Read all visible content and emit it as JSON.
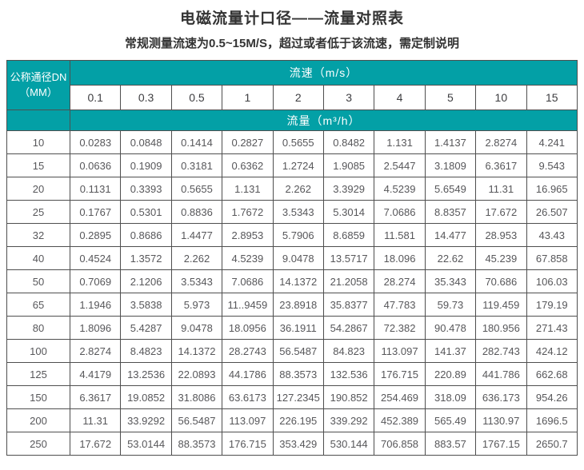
{
  "page": {
    "title": "电磁流量计口径——流量对照表",
    "subtitle": "常规测量流速为0.5~15M/S，超过或者低于该流速，需定制说明"
  },
  "colors": {
    "accent_teal": "#03a0a6",
    "table_border": "#4f4f4f",
    "header_text": "#ffffff",
    "data_text": "#57575a",
    "title_text": "#333333"
  },
  "chart_data": {
    "type": "table",
    "title": "电磁流量计口径——流量对照表",
    "subtitle": "常规测量流速为0.5~15M/S，超过或者低于该流速，需定制说明",
    "corner_header_line1": "公称通径DN",
    "corner_header_line2": "（MM）",
    "speed_header": "流速（m/s）",
    "flow_header": "流量（m³/h）",
    "speeds_mps": [
      "0.1",
      "0.3",
      "0.5",
      "1",
      "2",
      "3",
      "4",
      "5",
      "10",
      "15"
    ],
    "rows": [
      {
        "dn": "10",
        "flows_m3h": [
          "0.0283",
          "0.0848",
          "0.1414",
          "0.2827",
          "0.5655",
          "0.8482",
          "1.131",
          "1.4137",
          "2.8274",
          "4.241"
        ]
      },
      {
        "dn": "15",
        "flows_m3h": [
          "0.0636",
          "0.1909",
          "0.3181",
          "0.6362",
          "1.2724",
          "1.9085",
          "2.5447",
          "3.1809",
          "6.3617",
          "9.543"
        ]
      },
      {
        "dn": "20",
        "flows_m3h": [
          "0.1131",
          "0.3393",
          "0.5655",
          "1.131",
          "2.262",
          "3.3929",
          "4.5239",
          "5.6549",
          "11.31",
          "16.965"
        ]
      },
      {
        "dn": "25",
        "flows_m3h": [
          "0.1767",
          "0.5301",
          "0.8836",
          "1.7672",
          "3.5343",
          "5.3014",
          "7.0686",
          "8.8357",
          "17.672",
          "26.507"
        ]
      },
      {
        "dn": "32",
        "flows_m3h": [
          "0.2895",
          "0.8686",
          "1.4477",
          "2.8953",
          "5.7906",
          "8.6859",
          "11.581",
          "14.477",
          "28.953",
          "43.43"
        ]
      },
      {
        "dn": "40",
        "flows_m3h": [
          "0.4524",
          "1.3572",
          "2.262",
          "4.5239",
          "9.0478",
          "13.5717",
          "18.096",
          "22.62",
          "45.239",
          "67.858"
        ]
      },
      {
        "dn": "50",
        "flows_m3h": [
          "0.7069",
          "2.1206",
          "3.5343",
          "7.0686",
          "14.1372",
          "21.2058",
          "28.274",
          "35.343",
          "70.686",
          "106.03"
        ]
      },
      {
        "dn": "65",
        "flows_m3h": [
          "1.1946",
          "3.5838",
          "5.973",
          "11..9459",
          "23.8918",
          "35.8377",
          "47.783",
          "59.73",
          "119.459",
          "179.19"
        ]
      },
      {
        "dn": "80",
        "flows_m3h": [
          "1.8096",
          "5.4287",
          "9.0478",
          "18.0956",
          "36.1911",
          "54.2867",
          "72.382",
          "90.478",
          "180.956",
          "271.43"
        ]
      },
      {
        "dn": "100",
        "flows_m3h": [
          "2.8274",
          "8.4823",
          "14.1372",
          "28.2743",
          "56.5487",
          "84.823",
          "113.097",
          "141.37",
          "282.743",
          "424.12"
        ]
      },
      {
        "dn": "125",
        "flows_m3h": [
          "4.4179",
          "13.2536",
          "22.0893",
          "44.1786",
          "88.3573",
          "132.536",
          "176.715",
          "220.89",
          "441.786",
          "662.68"
        ]
      },
      {
        "dn": "150",
        "flows_m3h": [
          "6.3617",
          "19.0852",
          "31.8086",
          "63.6173",
          "127.2345",
          "190.852",
          "254.469",
          "318.09",
          "636.173",
          "954.26"
        ]
      },
      {
        "dn": "200",
        "flows_m3h": [
          "11.31",
          "33.9292",
          "56.5487",
          "113.097",
          "226.195",
          "339.292",
          "452.389",
          "565.49",
          "1130.97",
          "1696.5"
        ]
      },
      {
        "dn": "250",
        "flows_m3h": [
          "17.672",
          "53.0144",
          "88.3573",
          "176.715",
          "353.429",
          "530.144",
          "706.858",
          "883.57",
          "1767.15",
          "2650.7"
        ]
      }
    ]
  }
}
